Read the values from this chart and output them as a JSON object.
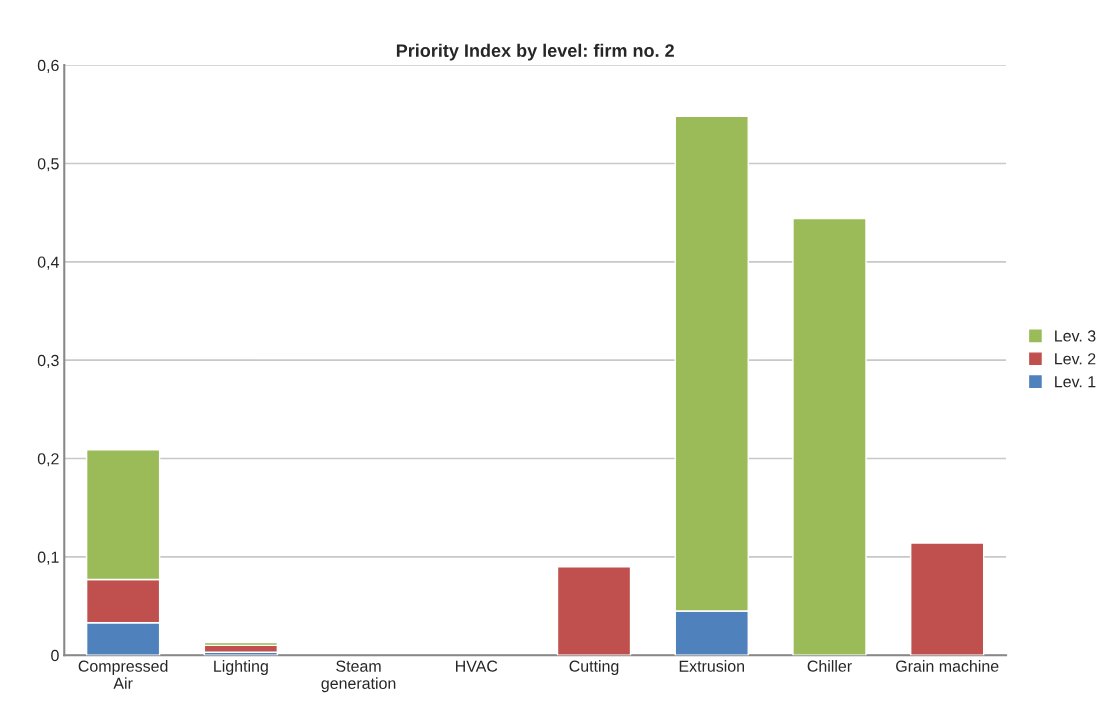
{
  "chart_data": {
    "type": "bar",
    "title": "Priority Index by level: firm no. 2",
    "categories": [
      "Compressed\nAir",
      "Lighting",
      "Steam\ngeneration",
      "HVAC",
      "Cutting",
      "Extrusion",
      "Chiller",
      "Grain machine"
    ],
    "stacked": true,
    "series": [
      {
        "name": "Lev. 1",
        "color": "#4f81bd",
        "values": [
          0.033,
          0.003,
          null,
          null,
          null,
          0.045,
          null,
          null
        ]
      },
      {
        "name": "Lev. 2",
        "color": "#c0504d",
        "values": [
          0.044,
          0.007,
          null,
          null,
          0.09,
          null,
          null,
          0.114
        ]
      },
      {
        "name": "Lev. 3",
        "color": "#9bbb59",
        "values": [
          0.132,
          0.003,
          null,
          null,
          null,
          0.503,
          0.444,
          null
        ]
      }
    ],
    "ylim": [
      0,
      0.6
    ],
    "yticks": [
      0,
      {
        "value": 0.1,
        "label": "0,1"
      },
      {
        "value": 0.2,
        "label": "0,2"
      },
      {
        "value": 0.3,
        "label": "0,3"
      },
      {
        "value": 0.4,
        "label": "0,4"
      },
      {
        "value": 0.5,
        "label": "0,5"
      },
      {
        "value": 0.6,
        "label": "0,6"
      }
    ],
    "grid": "y",
    "legend": "right"
  }
}
